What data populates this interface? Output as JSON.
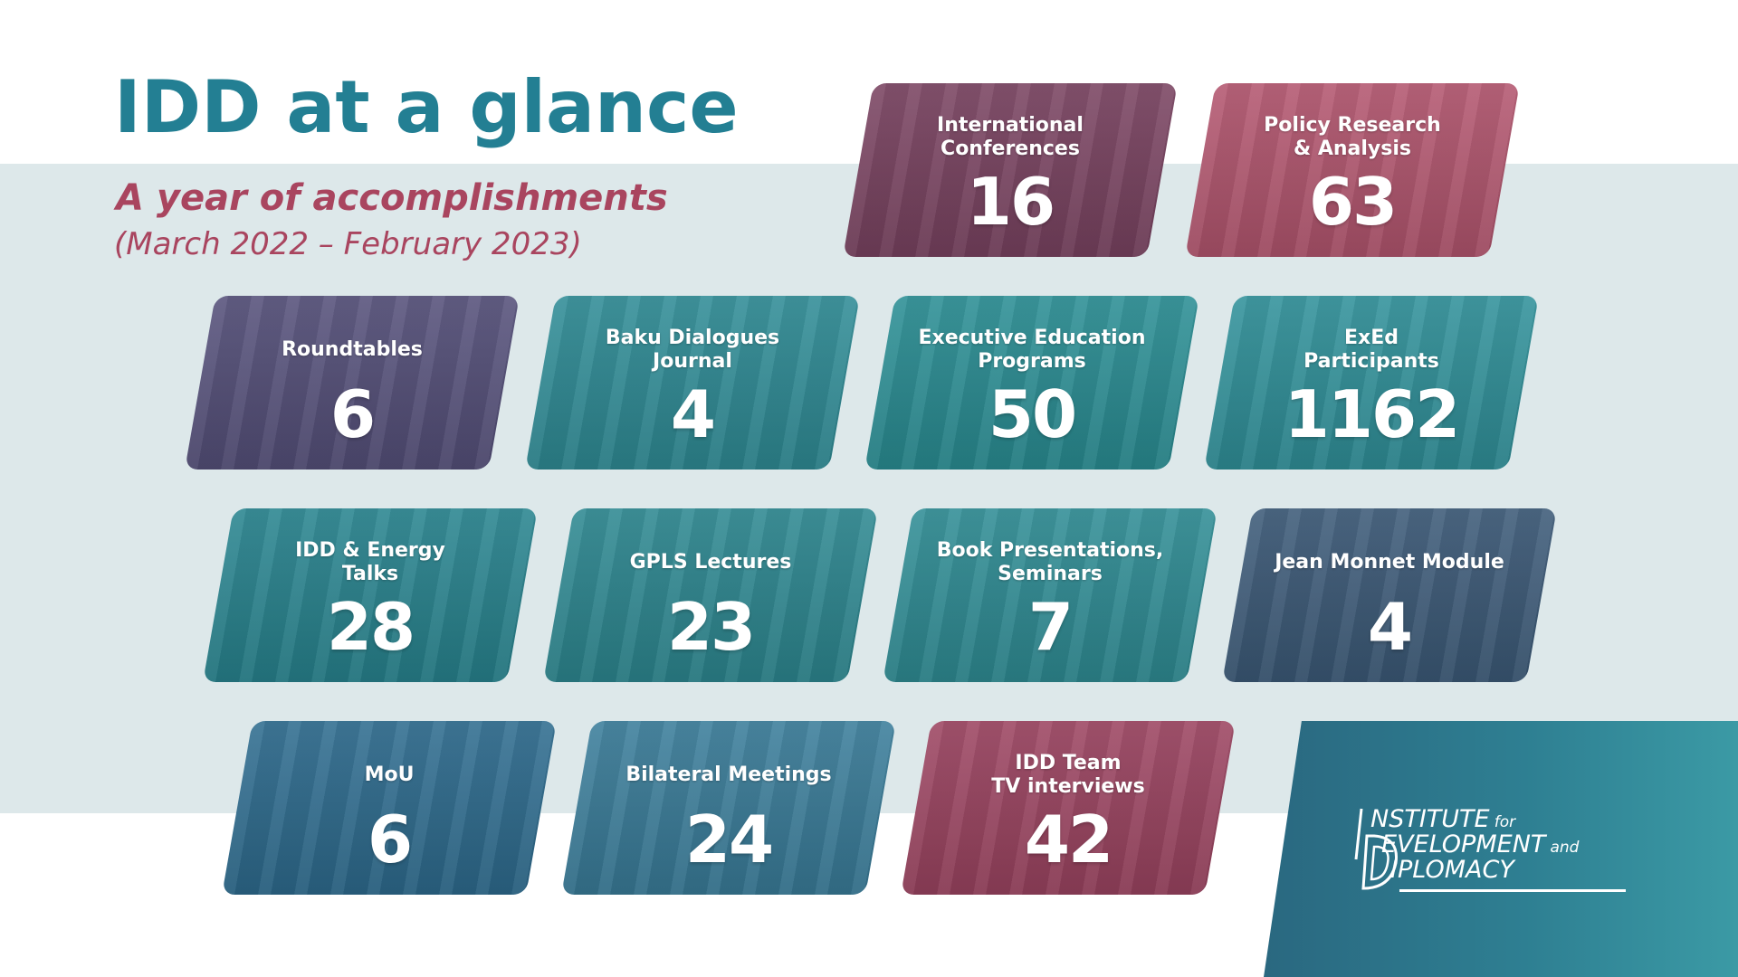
{
  "header": {
    "title": "IDD at a glance",
    "subtitle": "A year of accomplishments",
    "period": "(March 2022 – February 2023)"
  },
  "tiles": [
    {
      "label": "International\nConferences",
      "value": "16",
      "color": "#7a4361"
    },
    {
      "label": "Policy Research\n& Analysis",
      "value": "63",
      "color": "#b3566f"
    },
    {
      "label": "Roundtables",
      "value": "6",
      "color": "#55507a"
    },
    {
      "label": "Baku Dialogues\nJournal",
      "value": "4",
      "color": "#2f8c96"
    },
    {
      "label": "Executive Education\nPrograms",
      "value": "50",
      "color": "#2a8e94"
    },
    {
      "label": "ExEd\nParticipants",
      "value": "1162",
      "color": "#30919a"
    },
    {
      "label": "IDD & Energy\nTalks",
      "value": "28",
      "color": "#28848f"
    },
    {
      "label": "GPLS Lectures",
      "value": "23",
      "color": "#2d8891"
    },
    {
      "label": "Book Presentations,\nSeminars",
      "value": "7",
      "color": "#2f8d95"
    },
    {
      "label": "Jean Monnet Module",
      "value": "4",
      "color": "#3c5a78"
    },
    {
      "label": "MoU",
      "value": "6",
      "color": "#2e6c8f"
    },
    {
      "label": "Bilateral Meetings",
      "value": "24",
      "color": "#3a7d9a"
    },
    {
      "label": "IDD Team\nTV interviews",
      "value": "42",
      "color": "#9c4461"
    }
  ],
  "logo": {
    "line1": "NSTITUTE",
    "line1_small": "for",
    "line2": "EVELOPMENT",
    "line2_small": "and",
    "line3": "IPLOMACY"
  }
}
